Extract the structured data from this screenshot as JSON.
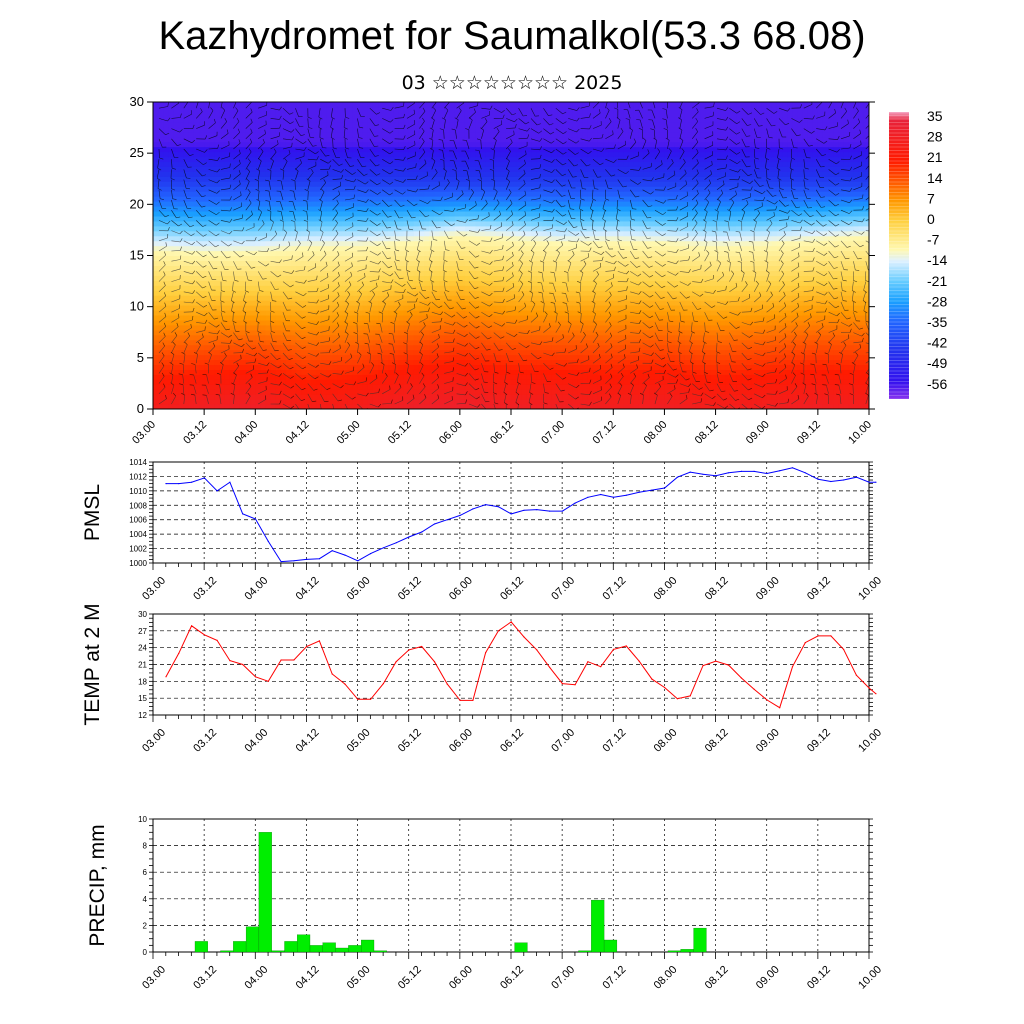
{
  "header": {
    "title": "Kazhydromet for Saumalkol(53.3 68.08)",
    "subtitle": "03 ☆☆☆☆☆☆☆☆ 2025"
  },
  "colors": {
    "pmsl_line": "#0000ff",
    "temp_line": "#ff0000",
    "precip_bar": "#00ee00",
    "precip_bar_edge": "#007700",
    "wind_barb": "#000000"
  },
  "time_ticks": [
    "03.00",
    "03.12",
    "04.00",
    "04.12",
    "05.00",
    "05.12",
    "06.00",
    "06.12",
    "07.00",
    "07.12",
    "08.00",
    "08.12",
    "09.00",
    "09.12",
    "10.00"
  ],
  "chart_data": [
    {
      "id": "cross_section",
      "type": "heatmap",
      "title": "",
      "xlabel": "",
      "ylabel": "",
      "x_range": [
        0,
        7
      ],
      "y_range": [
        0,
        30
      ],
      "yticks": [
        0,
        5,
        10,
        15,
        20,
        25,
        30
      ],
      "colorbar": {
        "labels": [
          "35",
          "28",
          "21",
          "14",
          "7",
          "0",
          "-7",
          "-14",
          "-21",
          "-28",
          "-35",
          "-42",
          "-49",
          "-56"
        ],
        "stops": [
          {
            "v": 38,
            "c": "#f4a0c0"
          },
          {
            "v": 35,
            "c": "#e8223a"
          },
          {
            "v": 21,
            "c": "#ff1a00"
          },
          {
            "v": 14,
            "c": "#ff5500"
          },
          {
            "v": 7,
            "c": "#ff9900"
          },
          {
            "v": 0,
            "c": "#ffd040"
          },
          {
            "v": -10,
            "c": "#fff8b0"
          },
          {
            "v": -14,
            "c": "#ddf0ff"
          },
          {
            "v": -21,
            "c": "#66ccff"
          },
          {
            "v": -28,
            "c": "#1aa0ff"
          },
          {
            "v": -35,
            "c": "#2266ff"
          },
          {
            "v": -45,
            "c": "#2233ee"
          },
          {
            "v": -56,
            "c": "#3311ee"
          },
          {
            "v": -62,
            "c": "#8833ee"
          }
        ]
      },
      "surface_temperature_by_time": {
        "x": [
          0,
          0.5,
          1,
          1.5,
          2,
          2.5,
          3,
          3.5,
          4,
          4.5,
          5,
          5.5,
          6,
          6.5,
          7
        ],
        "t0": [
          28,
          30,
          31,
          27,
          28,
          31,
          32,
          30,
          30,
          29,
          30,
          28,
          29,
          30,
          29
        ]
      },
      "freezing_level_km_by_time": {
        "x": [
          0,
          0.5,
          1,
          1.5,
          2,
          2.5,
          3,
          3.5,
          4,
          4.5,
          5,
          5.5,
          6,
          6.5,
          7
        ],
        "z": [
          15.5,
          15.2,
          15.3,
          15.8,
          15.9,
          16.3,
          17.0,
          16.6,
          16.2,
          16.4,
          16.2,
          15.9,
          16.1,
          16.5,
          16.9
        ]
      }
    },
    {
      "id": "pmsl",
      "type": "line",
      "title": "",
      "ylabel": "PMSL",
      "xlabel": "",
      "ylim": [
        1000,
        1014
      ],
      "yticks": [
        1000,
        1002,
        1004,
        1006,
        1008,
        1010,
        1012,
        1014
      ],
      "x": [
        0,
        0.125,
        0.25,
        0.375,
        0.5,
        0.625,
        0.75,
        0.875,
        1,
        1.125,
        1.25,
        1.375,
        1.5,
        1.625,
        1.75,
        1.875,
        2,
        2.125,
        2.25,
        2.375,
        2.5,
        2.625,
        2.75,
        2.875,
        3,
        3.125,
        3.25,
        3.375,
        3.5,
        3.625,
        3.75,
        3.875,
        4,
        4.125,
        4.25,
        4.375,
        4.5,
        4.625,
        4.75,
        4.875,
        5,
        5.125,
        5.25,
        5.375,
        5.5,
        5.625,
        5.75,
        5.875,
        6,
        6.125,
        6.25,
        6.375,
        6.5,
        6.625,
        6.75,
        6.875
      ],
      "values": [
        1011,
        1011,
        1011.2,
        1011.8,
        1010,
        1011.2,
        1006.8,
        1006.1,
        1003,
        1000.2,
        1000.3,
        1000.5,
        1000.6,
        1001.7,
        1001.1,
        1000.3,
        1001.3,
        1002.1,
        1002.8,
        1003.6,
        1004.3,
        1005.4,
        1006,
        1006.6,
        1007.5,
        1008.1,
        1007.8,
        1006.8,
        1007.3,
        1007.4,
        1007.2,
        1007.2,
        1008.3,
        1009.1,
        1009.5,
        1009.1,
        1009.4,
        1009.8,
        1010.1,
        1010.4,
        1011.9,
        1012.6,
        1012.3,
        1012.1,
        1012.5,
        1012.7,
        1012.7,
        1012.4,
        1012.8,
        1013.2,
        1012.5,
        1011.6,
        1011.3,
        1011.5,
        1011.9,
        1011.2
      ],
      "extra_point": {
        "x": 6.94,
        "value": 1011.2
      }
    },
    {
      "id": "temp",
      "type": "line",
      "title": "",
      "ylabel": "TEMP at 2 M",
      "xlabel": "",
      "ylim": [
        12,
        30
      ],
      "yticks": [
        12,
        15,
        18,
        21,
        24,
        27,
        30
      ],
      "x": [
        0,
        0.25,
        0.5,
        0.75,
        1,
        1.25,
        1.5,
        1.75,
        2,
        2.25,
        2.5,
        2.75,
        3,
        3.25,
        3.5,
        3.75,
        4,
        4.25,
        4.5,
        4.75,
        5,
        5.25,
        5.5,
        5.75,
        6,
        6.25,
        6.5,
        6.75,
        7
      ],
      "values": [
        18.8,
        27.9,
        25.3,
        21.5,
        18.2,
        21.8,
        25.2,
        19.3,
        14.7,
        18.8,
        23.9,
        21.2,
        14.5,
        23.2,
        28.6,
        23.6,
        17.6,
        21.2,
        24.2,
        19.3,
        15.2,
        20.8,
        21.3,
        16.6,
        13.4,
        20.6,
        26.2,
        23.6,
        15.8
      ],
      "dense": {
        "x": [
          0,
          0.125,
          0.25,
          0.375,
          0.5,
          0.625,
          0.75,
          0.875,
          1,
          1.125,
          1.25,
          1.375,
          1.5,
          1.625,
          1.75,
          1.875,
          2,
          2.125,
          2.25,
          2.375,
          2.5,
          2.625,
          2.75,
          2.875,
          3,
          3.125,
          3.25,
          3.375,
          3.5,
          3.625,
          3.75,
          3.875,
          4,
          4.125,
          4.25,
          4.375,
          4.5,
          4.625,
          4.75,
          4.875,
          5,
          5.125,
          5.25,
          5.375,
          5.5,
          5.625,
          5.75,
          5.875,
          6,
          6.125,
          6.25,
          6.375,
          6.5,
          6.625,
          6.75,
          6.875
        ],
        "values": [
          18.8,
          23,
          27.9,
          26.3,
          25.3,
          21.7,
          21,
          18.8,
          18,
          21.8,
          21.8,
          24.2,
          25.2,
          19.3,
          17.5,
          14.8,
          14.8,
          17.6,
          21.5,
          23.6,
          24.2,
          21.5,
          17.5,
          14.6,
          14.6,
          23.1,
          27,
          28.6,
          25.9,
          23.6,
          20.5,
          17.6,
          17.4,
          21.5,
          20.6,
          23.7,
          24.3,
          21.6,
          18.4,
          16.9,
          14.9,
          15.4,
          20.8,
          21.6,
          20.9,
          18.6,
          16.6,
          14.7,
          13.3,
          20.6,
          24.9,
          26.1,
          26.1,
          23.7,
          19.1,
          16.8
        ],
        "extra_point": {
          "x": 6.94,
          "value": 15.8
        }
      }
    },
    {
      "id": "precip",
      "type": "bar",
      "title": "",
      "ylabel": "PRECIP, mm",
      "xlabel": "",
      "ylim": [
        0,
        10
      ],
      "yticks": [
        0,
        2,
        4,
        6,
        8,
        10
      ],
      "bar_width_days": 0.125,
      "x": [
        0.375,
        0.625,
        0.75,
        0.875,
        1,
        1.125,
        1.25,
        1.375,
        1.5,
        1.625,
        1.75,
        1.875,
        2,
        2.125,
        3.5,
        4.125,
        4.25,
        4.375,
        5.0,
        5.125,
        5.25
      ],
      "values": [
        0.8,
        0.1,
        0.8,
        1.9,
        9.0,
        0.1,
        0.8,
        1.3,
        0.5,
        0.7,
        0.3,
        0.5,
        0.9,
        0.1,
        0.7,
        0.1,
        3.9,
        0.9,
        0.1,
        0.2,
        1.8
      ]
    }
  ]
}
